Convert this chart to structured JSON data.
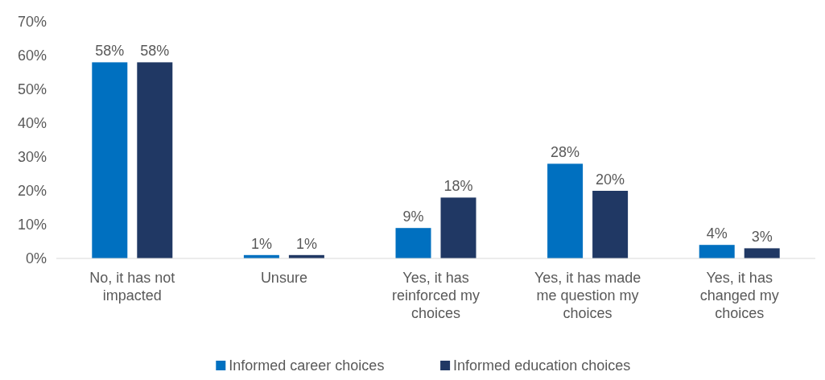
{
  "chart_data": {
    "type": "bar",
    "categories": [
      "No, it has not impacted",
      "Unsure",
      "Yes, it has reinforced my choices",
      "Yes, it has made me question my choices",
      "Yes, it has changed my choices"
    ],
    "series": [
      {
        "name": "Informed career choices",
        "color": "#0070c0",
        "values": [
          58,
          1,
          9,
          28,
          4
        ],
        "value_labels": [
          "58%",
          "1%",
          "9%",
          "28%",
          "4%"
        ]
      },
      {
        "name": "Informed education choices",
        "color": "#203864",
        "values": [
          58,
          1,
          18,
          20,
          3
        ],
        "value_labels": [
          "58%",
          "1%",
          "18%",
          "20%",
          "3%"
        ]
      }
    ],
    "ylim": [
      0,
      70
    ],
    "yticks": [
      {
        "value": 0,
        "label": "0%"
      },
      {
        "value": 10,
        "label": "10%"
      },
      {
        "value": 20,
        "label": "20%"
      },
      {
        "value": 30,
        "label": "30%"
      },
      {
        "value": 40,
        "label": "40%"
      },
      {
        "value": 50,
        "label": "50%"
      },
      {
        "value": 60,
        "label": "60%"
      },
      {
        "value": 70,
        "label": "70%"
      }
    ],
    "grid": false,
    "legend": "bottom"
  }
}
